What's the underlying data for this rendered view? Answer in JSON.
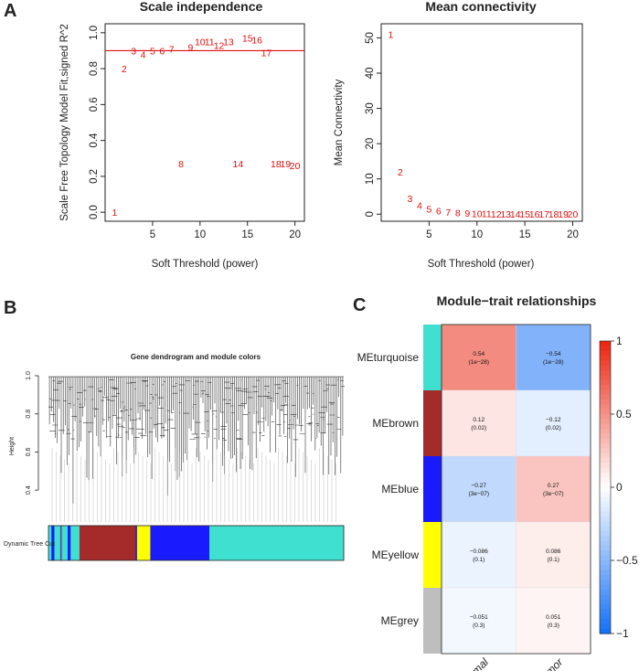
{
  "panels": {
    "A": "A",
    "B": "B",
    "C": "C"
  },
  "colors": {
    "point": "#e01010",
    "cutline": "#e01010"
  },
  "chart_data": [
    {
      "type": "scatter",
      "title": "Scale independence",
      "xlabel": "Soft Threshold (power)",
      "ylabel": "Scale Free Topology Model Fit,signed R^2",
      "xlim": [
        0,
        21
      ],
      "ylim": [
        -0.05,
        1.05
      ],
      "xticks": [
        "5",
        "10",
        "15",
        "20"
      ],
      "yticks": [
        "0.0",
        "0.2",
        "0.4",
        "0.6",
        "0.8",
        "1.0"
      ],
      "threshold_line": 0.9,
      "points": [
        {
          "label": "1",
          "x": 1,
          "y": 0.0
        },
        {
          "label": "2",
          "x": 2,
          "y": 0.8
        },
        {
          "label": "3",
          "x": 3,
          "y": 0.9
        },
        {
          "label": "4",
          "x": 4,
          "y": 0.88
        },
        {
          "label": "5",
          "x": 5,
          "y": 0.9
        },
        {
          "label": "6",
          "x": 6,
          "y": 0.9
        },
        {
          "label": "7",
          "x": 7,
          "y": 0.91
        },
        {
          "label": "8",
          "x": 8,
          "y": 0.27
        },
        {
          "label": "9",
          "x": 9,
          "y": 0.92
        },
        {
          "label": "10",
          "x": 10,
          "y": 0.95
        },
        {
          "label": "11",
          "x": 11,
          "y": 0.95
        },
        {
          "label": "12",
          "x": 12,
          "y": 0.93
        },
        {
          "label": "13",
          "x": 13,
          "y": 0.95
        },
        {
          "label": "14",
          "x": 14,
          "y": 0.27
        },
        {
          "label": "15",
          "x": 15,
          "y": 0.97
        },
        {
          "label": "16",
          "x": 16,
          "y": 0.96
        },
        {
          "label": "17",
          "x": 17,
          "y": 0.89
        },
        {
          "label": "18",
          "x": 18,
          "y": 0.27
        },
        {
          "label": "19",
          "x": 19,
          "y": 0.27
        },
        {
          "label": "20",
          "x": 20,
          "y": 0.26
        }
      ]
    },
    {
      "type": "scatter",
      "title": "Mean connectivity",
      "xlabel": "Soft Threshold (power)",
      "ylabel": "Mean Connectivity",
      "xlim": [
        0,
        21
      ],
      "ylim": [
        -2,
        54
      ],
      "xticks": [
        "5",
        "10",
        "15",
        "20"
      ],
      "yticks": [
        "0",
        "10",
        "20",
        "30",
        "40",
        "50"
      ],
      "points": [
        {
          "label": "1",
          "x": 1,
          "y": 51
        },
        {
          "label": "2",
          "x": 2,
          "y": 12
        },
        {
          "label": "3",
          "x": 3,
          "y": 4.5
        },
        {
          "label": "4",
          "x": 4,
          "y": 2.5
        },
        {
          "label": "5",
          "x": 5,
          "y": 1.5
        },
        {
          "label": "6",
          "x": 6,
          "y": 1
        },
        {
          "label": "7",
          "x": 7,
          "y": 0.6
        },
        {
          "label": "8",
          "x": 8,
          "y": 0.4
        },
        {
          "label": "9",
          "x": 9,
          "y": 0.3
        },
        {
          "label": "10",
          "x": 10,
          "y": 0.2
        },
        {
          "label": "11",
          "x": 11,
          "y": 0.2
        },
        {
          "label": "12",
          "x": 12,
          "y": 0.1
        },
        {
          "label": "13",
          "x": 13,
          "y": 0.1
        },
        {
          "label": "14",
          "x": 14,
          "y": 0.1
        },
        {
          "label": "15",
          "x": 15,
          "y": 0.1
        },
        {
          "label": "16",
          "x": 16,
          "y": 0.1
        },
        {
          "label": "17",
          "x": 17,
          "y": 0.1
        },
        {
          "label": "18",
          "x": 18,
          "y": 0.1
        },
        {
          "label": "19",
          "x": 19,
          "y": 0.1
        },
        {
          "label": "20",
          "x": 20,
          "y": 0.1
        }
      ]
    },
    {
      "type": "dendrogram",
      "title": "Gene dendrogram and module colors",
      "ylabel": "Height",
      "yticks": [
        "0.4",
        "0.6",
        "0.8",
        "1.0"
      ],
      "ylim": [
        0.3,
        1.0
      ],
      "color_row_label": "Dynamic Tree Cut",
      "module_segments": [
        {
          "color": "#40e0d0",
          "fraction": 0.01
        },
        {
          "color": "#1a1aff",
          "fraction": 0.01
        },
        {
          "color": "#40e0d0",
          "fraction": 0.02
        },
        {
          "color": "#6b3a9b",
          "fraction": 0.005
        },
        {
          "color": "#40e0d0",
          "fraction": 0.02
        },
        {
          "color": "#1a1aff",
          "fraction": 0.01
        },
        {
          "color": "#40e0d0",
          "fraction": 0.03
        },
        {
          "color": "#a52a2a",
          "fraction": 0.19
        },
        {
          "color": "#1a1aff",
          "fraction": 0.005
        },
        {
          "color": "#ffff00",
          "fraction": 0.045
        },
        {
          "color": "#1a1aff",
          "fraction": 0.2
        },
        {
          "color": "#40e0d0",
          "fraction": 0.455
        }
      ]
    },
    {
      "type": "heatmap",
      "title": "Module−trait relationships",
      "columns": [
        "Normal",
        "Tumor"
      ],
      "rows": [
        {
          "label": "MEturquoise",
          "color": "#40e0d0",
          "values": [
            0.54,
            -0.54
          ],
          "texts": [
            "0.54",
            "−0.54"
          ],
          "pvals": [
            "(1e−28)",
            "(1e−28)"
          ]
        },
        {
          "label": "MEbrown",
          "color": "#a52a2a",
          "values": [
            0.12,
            -0.12
          ],
          "texts": [
            "0.12",
            "−0.12"
          ],
          "pvals": [
            "(0.02)",
            "(0.02)"
          ]
        },
        {
          "label": "MEblue",
          "color": "#1a1aff",
          "values": [
            -0.27,
            0.27
          ],
          "texts": [
            "−0.27",
            "0.27"
          ],
          "pvals": [
            "(3e−07)",
            "(3e−07)"
          ]
        },
        {
          "label": "MEyellow",
          "color": "#ffff00",
          "values": [
            -0.086,
            0.086
          ],
          "texts": [
            "−0.086",
            "0.086"
          ],
          "pvals": [
            "(0.1)",
            "(0.1)"
          ]
        },
        {
          "label": "MEgrey",
          "color": "#bebebe",
          "values": [
            -0.051,
            0.051
          ],
          "texts": [
            "−0.051",
            "0.051"
          ],
          "pvals": [
            "(0.3)",
            "(0.3)"
          ]
        }
      ],
      "legend_ticks": [
        "1",
        "0.5",
        "0",
        "−0.5",
        "−1"
      ],
      "legend_range": [
        -1,
        1
      ]
    }
  ]
}
